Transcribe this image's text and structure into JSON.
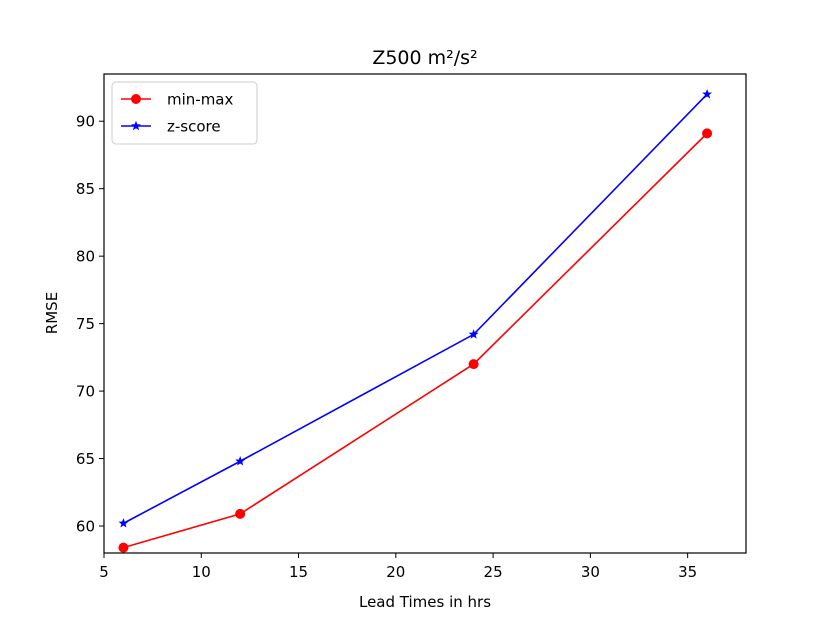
{
  "chart_data": {
    "type": "line",
    "title": "Z500 m²/s²",
    "xlabel": "Lead Times in hrs",
    "ylabel": "RMSE",
    "xlim": [
      5,
      38
    ],
    "ylim": [
      58,
      93.5
    ],
    "xticks": [
      5,
      10,
      15,
      20,
      25,
      30,
      35
    ],
    "yticks": [
      60,
      65,
      70,
      75,
      80,
      85,
      90
    ],
    "grid": false,
    "legend_position": "top-left",
    "x": [
      6,
      12,
      24,
      36
    ],
    "series": [
      {
        "name": "min-max",
        "color": "#ff0000",
        "marker": "circle",
        "values": [
          58.4,
          60.9,
          72.0,
          89.1
        ]
      },
      {
        "name": "z-score",
        "color": "#0000ff",
        "marker": "star",
        "values": [
          60.2,
          64.8,
          74.2,
          92.0
        ]
      }
    ]
  }
}
